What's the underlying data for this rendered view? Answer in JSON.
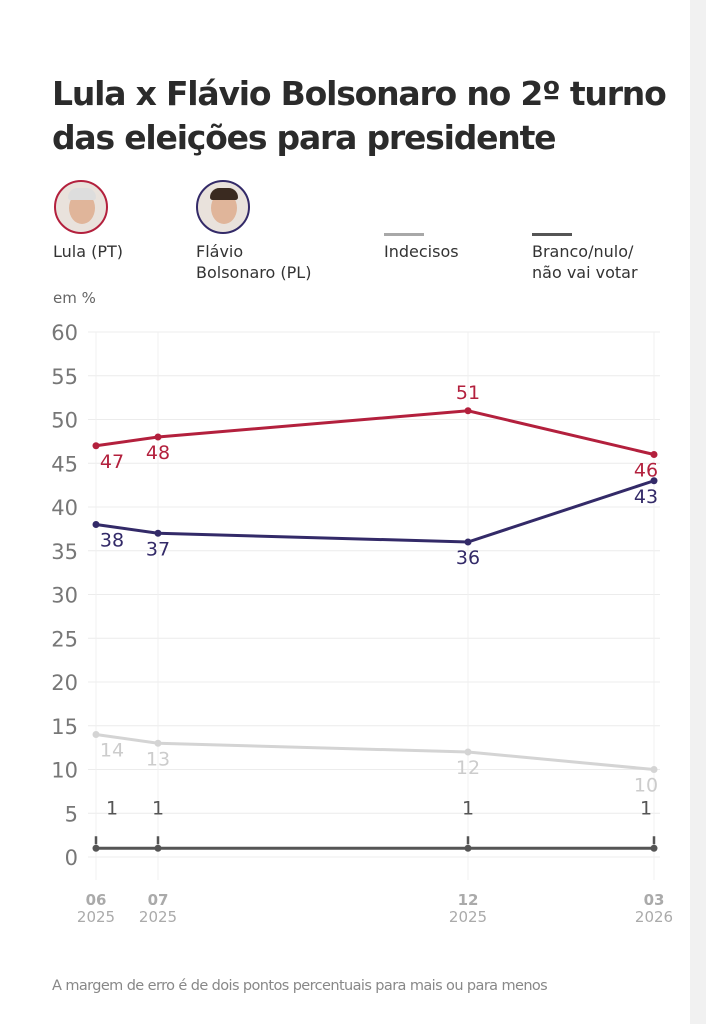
{
  "title": "Lula x Flávio Bolsonaro no 2º turno das eleições para presidente",
  "legend": [
    {
      "label": "Lula (PT)",
      "color": "#b3203d",
      "icon": "lula-photo"
    },
    {
      "label_line1": "Flávio",
      "label_line2": "Bolsonaro (PL)",
      "color": "#332a68",
      "icon": "flavio-photo"
    },
    {
      "label": "Indecisos",
      "color": "#a8a8a8",
      "icon": "line-swatch"
    },
    {
      "label_line1": "Branco/nulo/",
      "label_line2": "não vai votar",
      "color": "#555555",
      "icon": "line-swatch"
    }
  ],
  "note": "A margem de erro é de dois pontos percentuais para mais ou para menos",
  "chart_data": {
    "type": "line",
    "ylabel": "em %",
    "ylim": [
      0,
      60
    ],
    "yticks": [
      0,
      5,
      10,
      15,
      20,
      25,
      30,
      35,
      40,
      45,
      50,
      55,
      60
    ],
    "grid": true,
    "x": [
      "2025-06",
      "2025-07",
      "2025-12",
      "2026-03"
    ],
    "x_tick_labels": [
      {
        "month": "06",
        "year": "2025"
      },
      {
        "month": "07",
        "year": "2025"
      },
      {
        "month": "12",
        "year": "2025"
      },
      {
        "month": "03",
        "year": "2026"
      }
    ],
    "series": [
      {
        "name": "Lula (PT)",
        "color": "#b3203d",
        "values": [
          47,
          48,
          51,
          46
        ]
      },
      {
        "name": "Flávio Bolsonaro (PL)",
        "color": "#332a68",
        "values": [
          38,
          37,
          36,
          43
        ]
      },
      {
        "name": "Indecisos",
        "color": "#d4d4d4",
        "values": [
          14,
          13,
          12,
          10
        ]
      },
      {
        "name": "Branco/nulo/não vai votar",
        "color": "#555555",
        "values": [
          1,
          1,
          1,
          1
        ]
      }
    ]
  }
}
